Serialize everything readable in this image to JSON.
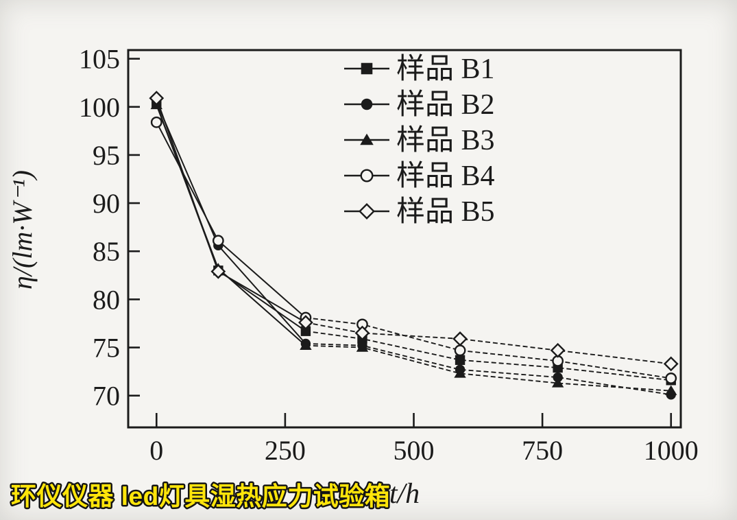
{
  "background_color": "#f5f4f1",
  "line_color": "#1b1b1b",
  "chart_data": {
    "type": "line",
    "title": "",
    "xlabel": "t/h",
    "ylabel": "η/(lm·W⁻¹)",
    "x_ticks": [
      0,
      250,
      500,
      750,
      1000
    ],
    "y_ticks": [
      70,
      75,
      80,
      85,
      90,
      95,
      100,
      105
    ],
    "xlim": [
      -55,
      1019
    ],
    "ylim": [
      66.7,
      105.9
    ],
    "grid": false,
    "legend_position": "inside-top-right",
    "x": [
      0,
      120,
      290,
      400,
      590,
      780,
      1000
    ],
    "series": [
      {
        "name": "样品 B1",
        "marker": "filled-square",
        "values": [
          100.3,
          83.0,
          76.7,
          75.9,
          73.7,
          72.9,
          71.6
        ]
      },
      {
        "name": "样品 B2",
        "marker": "filled-circle",
        "values": [
          100.5,
          85.6,
          75.4,
          75.2,
          72.7,
          71.9,
          70.1
        ]
      },
      {
        "name": "样品 B3",
        "marker": "filled-triangle",
        "values": [
          100.2,
          83.2,
          75.2,
          75.0,
          72.3,
          71.3,
          70.5
        ]
      },
      {
        "name": "样品 B4",
        "marker": "open-circle",
        "values": [
          98.4,
          86.1,
          78.1,
          77.4,
          74.7,
          73.6,
          71.8
        ]
      },
      {
        "name": "样品 B5",
        "marker": "open-diamond",
        "values": [
          100.9,
          82.9,
          77.6,
          76.5,
          75.9,
          74.7,
          73.3
        ]
      }
    ]
  },
  "watermark": {
    "text": "环仪仪器 led灯具湿热应力试验箱",
    "color": "#ffe50a",
    "outline_color": "#141414"
  }
}
